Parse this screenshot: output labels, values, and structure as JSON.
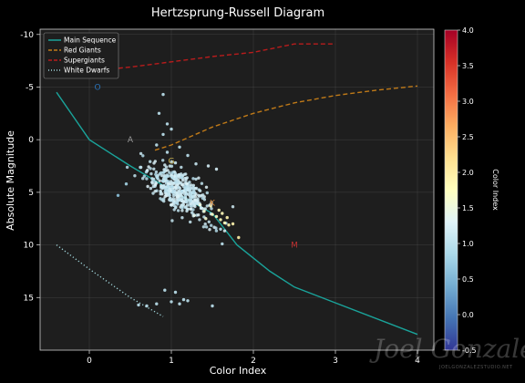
{
  "chart_data": {
    "type": "scatter",
    "title": "Hertzsprung-Russell Diagram",
    "xlabel": "Color Index",
    "ylabel": "Absolute Magnitude",
    "xlim": [
      -0.6,
      4.2
    ],
    "ylim": [
      20.0,
      -10.5
    ],
    "y_inverted": true,
    "grid": true,
    "x_ticks": [
      0,
      1,
      2,
      3,
      4
    ],
    "y_ticks": [
      -10,
      -5,
      0,
      5,
      10,
      15
    ],
    "legend_position": "top-left",
    "series": [
      {
        "name": "Main Sequence",
        "style": "solid",
        "color": "#1aa39a",
        "x": [
          -0.4,
          0.0,
          0.5,
          1.0,
          1.5,
          1.8,
          2.2,
          2.5,
          3.0,
          4.0
        ],
        "y": [
          -4.5,
          0.0,
          2.5,
          4.8,
          7.0,
          10.0,
          12.5,
          14.0,
          15.5,
          18.5
        ]
      },
      {
        "name": "Red Giants",
        "style": "dashed",
        "color": "#c07a18",
        "x": [
          0.8,
          1.0,
          1.5,
          2.0,
          2.5,
          3.0,
          3.5,
          4.0
        ],
        "y": [
          1.0,
          0.5,
          -1.2,
          -2.5,
          -3.5,
          -4.2,
          -4.7,
          -5.1
        ]
      },
      {
        "name": "Supergiants",
        "style": "dashed",
        "color": "#b81c1c",
        "x": [
          0.0,
          0.5,
          1.0,
          1.5,
          2.0,
          2.5,
          3.0
        ],
        "y": [
          -6.5,
          -6.9,
          -7.4,
          -7.9,
          -8.3,
          -9.1,
          -9.1
        ]
      },
      {
        "name": "White Dwarfs",
        "style": "dotted",
        "color": "#9fd3d8",
        "x": [
          -0.4,
          0.0,
          0.5,
          0.9
        ],
        "y": [
          10.0,
          12.3,
          15.0,
          16.8
        ]
      }
    ],
    "spectral_annotations": [
      {
        "text": "O",
        "x": 0.1,
        "y": -5.0,
        "color": "#2a72b8"
      },
      {
        "text": "A",
        "x": 0.5,
        "y": 0.0,
        "color": "#9a9a9a"
      },
      {
        "text": "G",
        "x": 1.0,
        "y": 2.0,
        "color": "#c8b050"
      },
      {
        "text": "K",
        "x": 1.5,
        "y": 6.0,
        "color": "#d08030"
      },
      {
        "text": "M",
        "x": 2.5,
        "y": 10.0,
        "color": "#c03030"
      }
    ],
    "stars": {
      "main_cluster": {
        "count": 420,
        "color_index_range": [
          0.6,
          1.6
        ],
        "magnitude_range": [
          2.5,
          7.5
        ],
        "spread": 0.9,
        "color_value_range": [
          0.9,
          1.3
        ]
      },
      "tail_points": [
        {
          "x": 1.4,
          "y": 6.8,
          "c": 1.6
        },
        {
          "x": 1.5,
          "y": 7.1,
          "c": 1.7
        },
        {
          "x": 1.55,
          "y": 7.3,
          "c": 1.7
        },
        {
          "x": 1.6,
          "y": 7.6,
          "c": 1.8
        },
        {
          "x": 1.65,
          "y": 7.9,
          "c": 1.8
        },
        {
          "x": 1.7,
          "y": 8.1,
          "c": 1.9
        },
        {
          "x": 1.75,
          "y": 8.0,
          "c": 1.9
        },
        {
          "x": 1.62,
          "y": 7.0,
          "c": 1.8
        },
        {
          "x": 1.48,
          "y": 6.3,
          "c": 1.7
        },
        {
          "x": 1.58,
          "y": 6.7,
          "c": 1.8
        },
        {
          "x": 1.82,
          "y": 9.3,
          "c": 2.0
        },
        {
          "x": 1.35,
          "y": 6.2,
          "c": 1.5
        },
        {
          "x": 1.42,
          "y": 7.5,
          "c": 1.6
        },
        {
          "x": 1.28,
          "y": 7.2,
          "c": 1.4
        },
        {
          "x": 1.68,
          "y": 7.4,
          "c": 1.9
        }
      ],
      "outliers": [
        {
          "x": 0.9,
          "y": -4.3,
          "c": 1.0
        },
        {
          "x": 0.85,
          "y": -2.5,
          "c": 1.0
        },
        {
          "x": 0.95,
          "y": -1.5,
          "c": 1.0
        },
        {
          "x": 0.9,
          "y": -0.5,
          "c": 1.0
        },
        {
          "x": 1.0,
          "y": -1.0,
          "c": 1.0
        },
        {
          "x": 0.82,
          "y": 0.5,
          "c": 1.0
        },
        {
          "x": 1.1,
          "y": 0.7,
          "c": 1.0
        },
        {
          "x": 1.2,
          "y": 1.5,
          "c": 1.0
        },
        {
          "x": 0.95,
          "y": 1.2,
          "c": 1.0
        },
        {
          "x": 1.05,
          "y": 2.2,
          "c": 1.1
        },
        {
          "x": 1.3,
          "y": 2.3,
          "c": 1.1
        },
        {
          "x": 1.45,
          "y": 2.5,
          "c": 1.2
        },
        {
          "x": 1.55,
          "y": 2.8,
          "c": 1.2
        },
        {
          "x": 0.35,
          "y": 5.3,
          "c": 0.6
        },
        {
          "x": 0.45,
          "y": 4.2,
          "c": 0.8
        },
        {
          "x": 1.6,
          "y": 8.5,
          "c": 1.0
        },
        {
          "x": 1.62,
          "y": 9.9,
          "c": 1.0
        },
        {
          "x": 0.92,
          "y": 14.3,
          "c": 1.0
        },
        {
          "x": 1.05,
          "y": 14.5,
          "c": 1.0
        },
        {
          "x": 1.15,
          "y": 15.2,
          "c": 1.0
        },
        {
          "x": 1.0,
          "y": 15.4,
          "c": 1.0
        },
        {
          "x": 0.82,
          "y": 15.6,
          "c": 1.0
        },
        {
          "x": 0.7,
          "y": 15.8,
          "c": 1.0
        },
        {
          "x": 1.1,
          "y": 15.6,
          "c": 1.0
        },
        {
          "x": 0.6,
          "y": 15.7,
          "c": 1.0
        },
        {
          "x": 1.5,
          "y": 15.8,
          "c": 1.0
        },
        {
          "x": 1.2,
          "y": 15.3,
          "c": 1.0
        }
      ]
    },
    "colorbar": {
      "label": "Color Index",
      "min": -0.5,
      "max": 4.0,
      "ticks": [
        -0.5,
        0.0,
        0.5,
        1.0,
        1.5,
        2.0,
        2.5,
        3.0,
        3.5,
        4.0
      ],
      "tick_labels": [
        "-0.5",
        "0.0",
        "0.5",
        "1.0",
        "1.5",
        "2.0",
        "2.5",
        "3.0",
        "3.5",
        "4.0"
      ],
      "colormap_stops": [
        "#313695",
        "#4575b4",
        "#74add1",
        "#abd9e9",
        "#e0f3f8",
        "#ffffbf",
        "#fee090",
        "#fdae61",
        "#f46d43",
        "#d73027",
        "#a50026"
      ]
    }
  },
  "watermark": {
    "text": "Joel Gonzalez",
    "subtext": "JOELGONZALEZSTUDIO.NET"
  },
  "colors": {
    "background": "#000000",
    "plot_background": "#1e1e1e",
    "grid": "#555555",
    "text": "#ffffff"
  }
}
